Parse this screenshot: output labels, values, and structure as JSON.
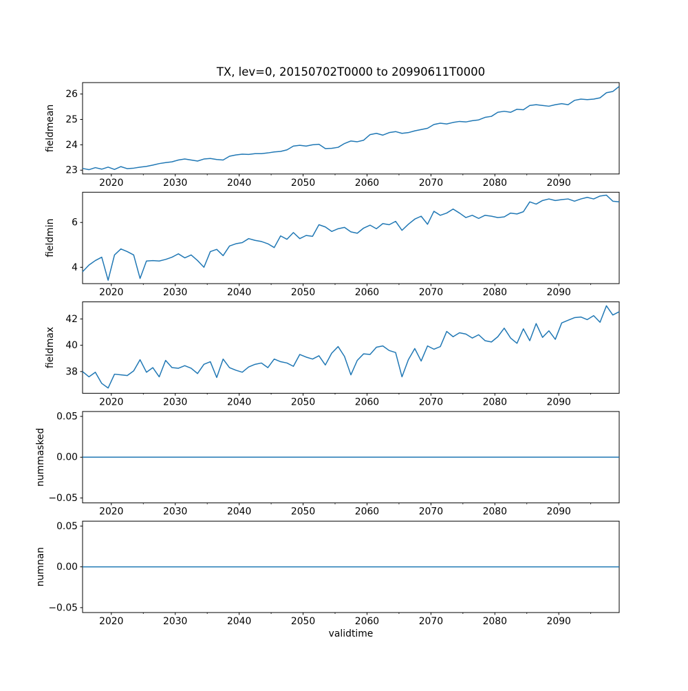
{
  "chart": {
    "title": "TX, lev=0, 20150702T0000 to 20990611T0000",
    "xlabel": "validtime",
    "line_color": "#1f77b4",
    "x": {
      "start_year": 2015,
      "end_year": 2099,
      "points": 85
    },
    "xlim": [
      2015.5,
      2099.45
    ],
    "xticks": [
      2020,
      2030,
      2040,
      2050,
      2060,
      2070,
      2080,
      2090
    ],
    "xtick_labels": [
      "2020",
      "2030",
      "2040",
      "2050",
      "2060",
      "2070",
      "2080",
      "2090"
    ],
    "xticks_minor": [
      2025,
      2035,
      2045,
      2055,
      2065,
      2075,
      2085,
      2095
    ],
    "subplots": [
      {
        "type": "line",
        "ylabel": "fieldmean",
        "ylim": [
          22.85,
          26.45
        ],
        "yticks": [
          23,
          24,
          25,
          26
        ],
        "ytick_labels": [
          "23",
          "24",
          "25",
          "26"
        ],
        "values": [
          23.07,
          23.02,
          23.1,
          23.04,
          23.12,
          23.03,
          23.14,
          23.06,
          23.08,
          23.12,
          23.15,
          23.2,
          23.26,
          23.3,
          23.33,
          23.4,
          23.44,
          23.4,
          23.36,
          23.44,
          23.46,
          23.42,
          23.4,
          23.55,
          23.6,
          23.63,
          23.62,
          23.65,
          23.65,
          23.68,
          23.72,
          23.74,
          23.8,
          23.95,
          23.98,
          23.95,
          24.0,
          24.02,
          23.85,
          23.86,
          23.9,
          24.05,
          24.15,
          24.12,
          24.18,
          24.4,
          24.45,
          24.38,
          24.48,
          24.52,
          24.45,
          24.48,
          24.55,
          24.6,
          24.65,
          24.8,
          24.85,
          24.82,
          24.88,
          24.92,
          24.9,
          24.95,
          24.98,
          25.08,
          25.12,
          25.28,
          25.32,
          25.28,
          25.4,
          25.38,
          25.55,
          25.58,
          25.55,
          25.52,
          25.58,
          25.62,
          25.58,
          25.75,
          25.8,
          25.78,
          25.8,
          25.85,
          26.05,
          26.1,
          26.3
        ]
      },
      {
        "type": "line",
        "ylabel": "fieldmin",
        "ylim": [
          3.27,
          7.35
        ],
        "yticks": [
          4,
          6
        ],
        "ytick_labels": [
          "4",
          "6"
        ],
        "values": [
          3.8,
          4.1,
          4.3,
          4.45,
          3.42,
          4.55,
          4.82,
          4.7,
          4.55,
          3.5,
          4.28,
          4.3,
          4.28,
          4.35,
          4.45,
          4.6,
          4.42,
          4.55,
          4.3,
          4.0,
          4.7,
          4.8,
          4.52,
          4.95,
          5.05,
          5.1,
          5.28,
          5.2,
          5.15,
          5.05,
          4.88,
          5.4,
          5.25,
          5.55,
          5.28,
          5.42,
          5.38,
          5.9,
          5.8,
          5.6,
          5.72,
          5.78,
          5.58,
          5.52,
          5.75,
          5.88,
          5.72,
          5.95,
          5.9,
          6.05,
          5.65,
          5.92,
          6.15,
          6.28,
          5.92,
          6.5,
          6.32,
          6.42,
          6.6,
          6.42,
          6.22,
          6.32,
          6.18,
          6.32,
          6.28,
          6.22,
          6.25,
          6.42,
          6.38,
          6.48,
          6.92,
          6.82,
          6.98,
          7.05,
          6.98,
          7.02,
          7.05,
          6.95,
          7.05,
          7.12,
          7.05,
          7.18,
          7.22,
          6.95,
          6.92
        ]
      },
      {
        "type": "line",
        "ylabel": "fieldmax",
        "ylim": [
          36.35,
          43.3
        ],
        "yticks": [
          38,
          40,
          42
        ],
        "ytick_labels": [
          "38",
          "40",
          "42"
        ],
        "values": [
          38.0,
          37.6,
          37.95,
          37.1,
          36.75,
          37.8,
          37.75,
          37.7,
          38.05,
          38.9,
          37.95,
          38.3,
          37.6,
          38.85,
          38.3,
          38.25,
          38.45,
          38.25,
          37.85,
          38.55,
          38.75,
          37.55,
          38.95,
          38.3,
          38.1,
          37.95,
          38.35,
          38.55,
          38.65,
          38.3,
          38.95,
          38.75,
          38.65,
          38.4,
          39.3,
          39.1,
          38.95,
          39.2,
          38.5,
          39.4,
          39.9,
          39.15,
          37.75,
          38.85,
          39.35,
          39.3,
          39.85,
          39.95,
          39.6,
          39.45,
          37.6,
          38.9,
          39.75,
          38.8,
          39.95,
          39.7,
          39.9,
          41.05,
          40.65,
          40.95,
          40.85,
          40.55,
          40.8,
          40.35,
          40.25,
          40.65,
          41.3,
          40.55,
          40.15,
          41.25,
          40.35,
          41.65,
          40.6,
          41.1,
          40.45,
          41.7,
          41.9,
          42.1,
          42.15,
          41.95,
          42.25,
          41.75,
          43.0,
          42.3,
          42.55
        ]
      },
      {
        "type": "line",
        "ylabel": "nummasked",
        "ylim": [
          -0.056,
          0.056
        ],
        "yticks": [
          0.05,
          0.0,
          -0.05
        ],
        "ytick_labels": [
          "0.05",
          "0.00",
          "−0.05"
        ],
        "values_constant": 0.0
      },
      {
        "type": "line",
        "ylabel": "numnan",
        "ylim": [
          -0.056,
          0.056
        ],
        "yticks": [
          0.05,
          0.0,
          -0.05
        ],
        "ytick_labels": [
          "0.05",
          "0.00",
          "−0.05"
        ],
        "values_constant": 0.0
      }
    ]
  },
  "chart_data": {
    "type": "line",
    "title": "TX, lev=0, 20150702T0000 to 20990611T0000",
    "xlabel": "validtime",
    "x_range_years": [
      2015,
      2099
    ],
    "legend_position": "none",
    "grid": false,
    "note": "Five stacked subplots sharing the x axis (yearly values 2015-2099). nummasked and numnan are constant zero.",
    "series": [
      {
        "name": "fieldmean",
        "ylim": [
          22.85,
          26.45
        ],
        "values_ref": "chart.subplots.0.values"
      },
      {
        "name": "fieldmin",
        "ylim": [
          3.27,
          7.35
        ],
        "values_ref": "chart.subplots.1.values"
      },
      {
        "name": "fieldmax",
        "ylim": [
          36.35,
          43.3
        ],
        "values_ref": "chart.subplots.2.values"
      },
      {
        "name": "nummasked",
        "ylim": [
          -0.056,
          0.056
        ],
        "constant": 0.0
      },
      {
        "name": "numnan",
        "ylim": [
          -0.056,
          0.056
        ],
        "constant": 0.0
      }
    ]
  }
}
